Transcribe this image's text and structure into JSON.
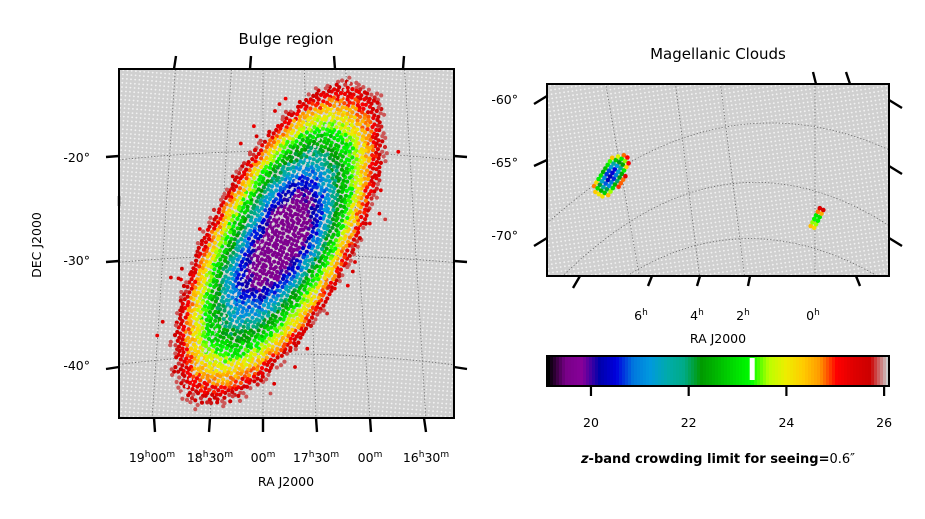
{
  "chart_data": [
    {
      "type": "heatmap",
      "title": "Bulge region",
      "xlabel": "RA J2000",
      "ylabel": "DEC J2000",
      "dec_ticks": [
        "-20°",
        "-30°",
        "-40°"
      ],
      "dec_values": [
        -20,
        -30,
        -40
      ],
      "ra_ticks": [
        {
          "h": "19",
          "hs": "h",
          "m": "00",
          "ms": "m"
        },
        {
          "h": "18",
          "hs": "h",
          "m": "30",
          "ms": "m"
        },
        {
          "h": "",
          "hs": "",
          "m": "00",
          "ms": "m"
        },
        {
          "h": "17",
          "hs": "h",
          "m": "30",
          "ms": "m"
        },
        {
          "h": "",
          "hs": "",
          "m": "00",
          "ms": "m"
        },
        {
          "h": "16",
          "hs": "h",
          "m": "30",
          "ms": "m"
        }
      ],
      "ra_values_hours": [
        19.0,
        18.5,
        18.0,
        17.5,
        17.0,
        16.5
      ],
      "dec_range": [
        -45,
        -12
      ],
      "ra_range_hours": [
        16.3,
        19.3
      ],
      "grid": true,
      "description_of_field": "elongated bulge footprint with crowding limit increasing toward centre (approx. 20-21 mag at centre, 25-26 mag at edges)"
    },
    {
      "type": "heatmap",
      "title": "Magellanic Clouds",
      "xlabel": "RA J2000",
      "dec_ticks": [
        "-60°",
        "-65°",
        "-70°"
      ],
      "dec_values": [
        -60,
        -65,
        -70
      ],
      "ra_ticks": [
        {
          "h": "6",
          "hs": "h"
        },
        {
          "h": "4",
          "hs": "h"
        },
        {
          "h": "2",
          "hs": "h"
        },
        {
          "h": "0",
          "hs": "h"
        }
      ],
      "ra_values_hours": [
        6,
        4,
        2,
        0
      ],
      "grid": true
    }
  ],
  "colorbar": {
    "label_prefix": "z",
    "label_main": "-band crowding limit for seeing=",
    "label_value": "0.6″",
    "ticks": [
      "20",
      "22",
      "24",
      "26"
    ],
    "tick_values": [
      20,
      22,
      24,
      26
    ],
    "range": [
      19.1,
      26.1
    ],
    "marker_value": 23.3,
    "colormap": "nipy_spectral"
  },
  "colors": {
    "background_sky": "#cfcfcf",
    "frame": "#000000"
  }
}
